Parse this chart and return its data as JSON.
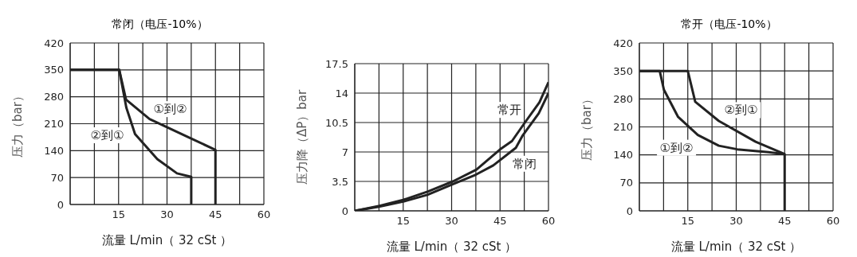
{
  "chart_data": [
    {
      "type": "line",
      "title": "常闭（电压-10%）",
      "xlabel": "流量 L/min（ 32 cSt ）",
      "ylabel": "压力（bar）",
      "xlim": [
        0,
        60
      ],
      "xticks": [
        {
          "value": 0,
          "label": null
        },
        {
          "value": 7.5,
          "label": null
        },
        15,
        {
          "value": 22.5,
          "label": null
        },
        30,
        {
          "value": 37.5,
          "label": null
        },
        45,
        {
          "value": 52.5,
          "label": null
        },
        60
      ],
      "ylim": [
        0,
        420
      ],
      "yticks": [
        0,
        70,
        140,
        210,
        280,
        350,
        420
      ],
      "grid": true,
      "marker": "none",
      "line_style": "solid",
      "series": [
        {
          "name": "①到②",
          "color": "#222222",
          "x": [
            0,
            15.2,
            17.3,
            24.6,
            37.1,
            45,
            45
          ],
          "values": [
            350,
            350,
            273,
            222,
            173,
            142,
            0
          ]
        },
        {
          "name": "②到①",
          "color": "#222222",
          "x": [
            0,
            15.2,
            17.4,
            20.1,
            27,
            33.1,
            37.5,
            37.5
          ],
          "values": [
            350,
            350,
            252,
            183,
            118,
            81,
            72,
            0
          ]
        }
      ]
    },
    {
      "type": "line",
      "xlabel": "流量 L/min（ 32 cSt ）",
      "ylabel": "压力降（ΔP）bar",
      "xlim": [
        0,
        60
      ],
      "xticks": [
        {
          "value": 0,
          "label": null
        },
        {
          "value": 7.5,
          "label": null
        },
        15,
        {
          "value": 22.5,
          "label": null
        },
        30,
        {
          "value": 37.5,
          "label": null
        },
        45,
        {
          "value": 52.5,
          "label": null
        },
        60
      ],
      "ylim": [
        0,
        17.5
      ],
      "yticks": [
        0,
        3.5,
        7,
        10.5,
        14,
        17.5
      ],
      "grid": true,
      "marker": "none",
      "line_style": "solid",
      "series": [
        {
          "name": "常开",
          "color": "#222222",
          "x": [
            0,
            7.7,
            15,
            22.7,
            30.4,
            37.7,
            45,
            48.7,
            52.7,
            57.2,
            60
          ],
          "values": [
            0,
            0.6,
            1.3,
            2.3,
            3.5,
            4.9,
            7.3,
            8.3,
            10.5,
            12.9,
            15.3
          ]
        },
        {
          "name": "常闭",
          "color": "#222222",
          "x": [
            0,
            7.5,
            15,
            22.5,
            30,
            37.5,
            42.9,
            49.9,
            51.9,
            57,
            60
          ],
          "values": [
            0,
            0.5,
            1.1,
            1.9,
            3.1,
            4.3,
            5.4,
            7.5,
            8.9,
            11.6,
            14
          ]
        }
      ]
    },
    {
      "type": "line",
      "title": "常开（电压-10%）",
      "xlabel": "流量 L/min（ 32 cSt ）",
      "ylabel": "压力（bar）",
      "xlim": [
        0,
        60
      ],
      "xticks": [
        {
          "value": 0,
          "label": null
        },
        {
          "value": 7.5,
          "label": null
        },
        15,
        {
          "value": 22.5,
          "label": null
        },
        30,
        {
          "value": 37.5,
          "label": null
        },
        45,
        {
          "value": 52.5,
          "label": null
        },
        60
      ],
      "ylim": [
        0,
        420
      ],
      "yticks": [
        0,
        70,
        140,
        210,
        280,
        350,
        420
      ],
      "grid": true,
      "marker": "none",
      "line_style": "solid",
      "series": [
        {
          "name": "②到①",
          "color": "#222222",
          "x": [
            0,
            15,
            17.3,
            24.6,
            36,
            45,
            45
          ],
          "values": [
            350,
            350,
            273,
            225,
            173,
            142,
            0
          ]
        },
        {
          "name": "①到②",
          "color": "#222222",
          "x": [
            0,
            6.3,
            7.6,
            12,
            18.1,
            24.6,
            30.3,
            40,
            45
          ],
          "values": [
            350,
            350,
            303,
            235,
            190,
            163,
            154,
            147,
            142
          ]
        }
      ]
    }
  ]
}
